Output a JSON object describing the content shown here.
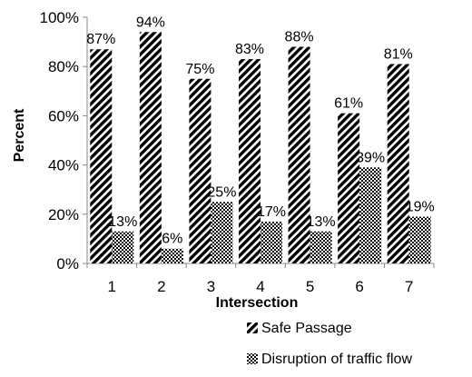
{
  "chart_data": {
    "type": "bar",
    "xlabel": "Intersection",
    "ylabel": "Percent",
    "categories": [
      "1",
      "2",
      "3",
      "4",
      "5",
      "6",
      "7"
    ],
    "ylim": [
      0,
      100
    ],
    "y_ticks": [
      "0%",
      "20%",
      "40%",
      "60%",
      "80%",
      "100%"
    ],
    "y_tick_values": [
      0,
      20,
      40,
      60,
      80,
      100
    ],
    "grid": false,
    "legend_position": "bottom-right",
    "series": [
      {
        "name": "Safe Passage",
        "pattern": "diagonal-stripes",
        "values": [
          87,
          94,
          75,
          83,
          88,
          61,
          81
        ],
        "labels": [
          "87%",
          "94%",
          "75%",
          "83%",
          "88%",
          "61%",
          "81%"
        ]
      },
      {
        "name": "Disruption of traffic flow",
        "pattern": "checkerboard",
        "values": [
          13,
          6,
          25,
          17,
          13,
          39,
          19
        ],
        "labels": [
          "13%",
          "6%",
          "25%",
          "17%",
          "13%",
          "39%",
          "19%"
        ]
      }
    ]
  }
}
